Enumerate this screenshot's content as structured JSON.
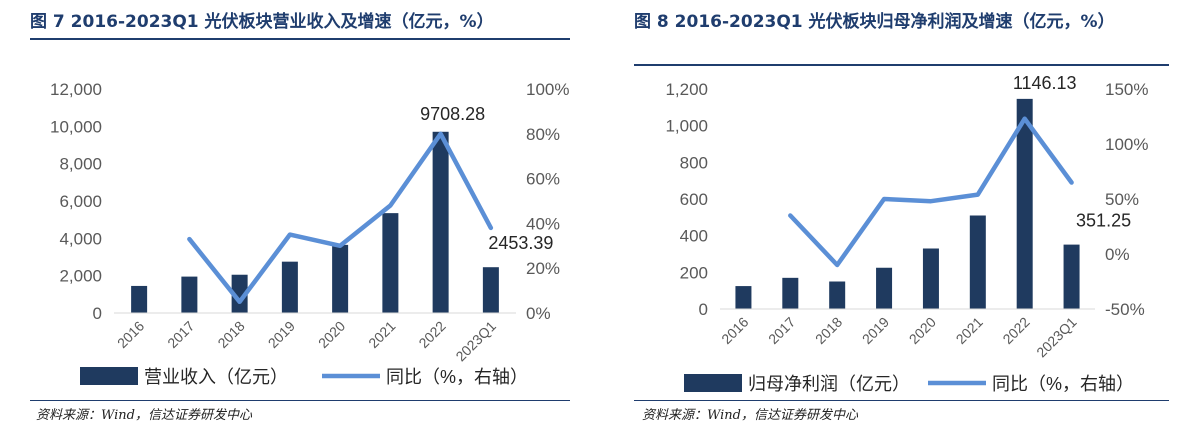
{
  "chart_data": [
    {
      "type": "bar+line",
      "title": "图 7 2016-2023Q1 光伏板块营业收入及增速（亿元，%）",
      "categories": [
        "2016",
        "2017",
        "2018",
        "2019",
        "2020",
        "2021",
        "2022",
        "2023Q1"
      ],
      "series": [
        {
          "name": "营业收入（亿元）",
          "type": "bar",
          "axis": "left",
          "values": [
            1450,
            1950,
            2050,
            2750,
            3650,
            5350,
            9708.28,
            2453.39
          ]
        },
        {
          "name": "同比（%，右轴）",
          "type": "line",
          "axis": "right",
          "values": [
            null,
            33,
            5,
            35,
            30,
            48,
            80,
            38
          ]
        }
      ],
      "data_labels": [
        {
          "index": 6,
          "text": "9708.28"
        },
        {
          "index": 7,
          "text": "2453.39"
        }
      ],
      "y_left": {
        "min": 0,
        "max": 12000,
        "ticks": [
          "0",
          "2,000",
          "4,000",
          "6,000",
          "8,000",
          "10,000",
          "12,000"
        ]
      },
      "y_right": {
        "min": 0,
        "max": 100,
        "ticks": [
          "0%",
          "20%",
          "40%",
          "60%",
          "80%",
          "100%"
        ]
      },
      "source": "资料来源：Wind，信达证券研发中心"
    },
    {
      "type": "bar+line",
      "title": "图 8 2016-2023Q1 光伏板块归母净利润及增速（亿元，%）",
      "categories": [
        "2016",
        "2017",
        "2018",
        "2019",
        "2020",
        "2021",
        "2022",
        "2023Q1"
      ],
      "series": [
        {
          "name": "归母净利润（亿元）",
          "type": "bar",
          "axis": "left",
          "values": [
            125,
            170,
            150,
            225,
            330,
            510,
            1146.13,
            351.25
          ]
        },
        {
          "name": "同比（%，右轴）",
          "type": "line",
          "axis": "right",
          "values": [
            null,
            35,
            -10,
            50,
            48,
            54,
            123,
            65
          ]
        }
      ],
      "data_labels": [
        {
          "index": 6,
          "text": "1146.13"
        },
        {
          "index": 7,
          "text": "351.25"
        }
      ],
      "y_left": {
        "min": 0,
        "max": 1200,
        "ticks": [
          "0",
          "200",
          "400",
          "600",
          "800",
          "1,000",
          "1,200"
        ]
      },
      "y_right": {
        "min": -50,
        "max": 150,
        "ticks": [
          "-50%",
          "0%",
          "50%",
          "100%",
          "150%"
        ]
      },
      "source": "资料来源：Wind，信达证券研发中心"
    }
  ],
  "colors": {
    "bar": "#1f3a5f",
    "line": "#5b8fd6",
    "title": "#1f3d6e"
  }
}
